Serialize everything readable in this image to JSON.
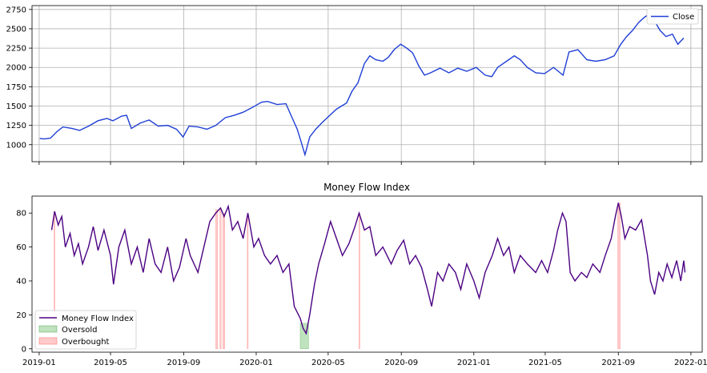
{
  "chart_data": [
    {
      "type": "line",
      "title": "",
      "xlabel": "",
      "ylabel": "",
      "x_ticks": [
        "2019-01",
        "2019-05",
        "2019-09",
        "2020-01",
        "2020-05",
        "2020-09",
        "2021-01",
        "2021-05",
        "2021-09",
        "2022-01"
      ],
      "xlim": [
        "2018-12-20",
        "2022-01-20"
      ],
      "ylim": [
        780,
        2800
      ],
      "y_ticks": [
        1000,
        1250,
        1500,
        1750,
        2000,
        2250,
        2500,
        2750
      ],
      "grid": true,
      "legend_position": "top-right",
      "series": [
        {
          "name": "Close",
          "color": "#1f3fd6",
          "points": [
            [
              "2019-01-02",
              1080
            ],
            [
              "2019-01-10",
              1075
            ],
            [
              "2019-01-20",
              1085
            ],
            [
              "2019-01-31",
              1170
            ],
            [
              "2019-02-10",
              1230
            ],
            [
              "2019-02-25",
              1210
            ],
            [
              "2019-03-10",
              1185
            ],
            [
              "2019-03-25",
              1240
            ],
            [
              "2019-04-10",
              1310
            ],
            [
              "2019-04-25",
              1340
            ],
            [
              "2019-05-05",
              1310
            ],
            [
              "2019-05-20",
              1370
            ],
            [
              "2019-05-28",
              1380
            ],
            [
              "2019-06-05",
              1210
            ],
            [
              "2019-06-20",
              1280
            ],
            [
              "2019-07-05",
              1320
            ],
            [
              "2019-07-20",
              1240
            ],
            [
              "2019-08-05",
              1250
            ],
            [
              "2019-08-20",
              1200
            ],
            [
              "2019-08-31",
              1100
            ],
            [
              "2019-09-10",
              1240
            ],
            [
              "2019-09-25",
              1230
            ],
            [
              "2019-10-10",
              1200
            ],
            [
              "2019-10-25",
              1250
            ],
            [
              "2019-11-10",
              1350
            ],
            [
              "2019-11-25",
              1380
            ],
            [
              "2019-12-10",
              1420
            ],
            [
              "2019-12-25",
              1480
            ],
            [
              "2020-01-10",
              1550
            ],
            [
              "2020-01-20",
              1560
            ],
            [
              "2020-02-05",
              1520
            ],
            [
              "2020-02-20",
              1530
            ],
            [
              "2020-02-28",
              1390
            ],
            [
              "2020-03-10",
              1200
            ],
            [
              "2020-03-16",
              1050
            ],
            [
              "2020-03-23",
              870
            ],
            [
              "2020-03-31",
              1100
            ],
            [
              "2020-04-10",
              1200
            ],
            [
              "2020-04-20",
              1280
            ],
            [
              "2020-05-01",
              1360
            ],
            [
              "2020-05-15",
              1460
            ],
            [
              "2020-06-01",
              1540
            ],
            [
              "2020-06-10",
              1690
            ],
            [
              "2020-06-20",
              1800
            ],
            [
              "2020-07-01",
              2050
            ],
            [
              "2020-07-10",
              2150
            ],
            [
              "2020-07-20",
              2100
            ],
            [
              "2020-08-01",
              2080
            ],
            [
              "2020-08-10",
              2130
            ],
            [
              "2020-08-20",
              2230
            ],
            [
              "2020-08-31",
              2300
            ],
            [
              "2020-09-10",
              2250
            ],
            [
              "2020-09-20",
              2190
            ],
            [
              "2020-10-01",
              2010
            ],
            [
              "2020-10-10",
              1900
            ],
            [
              "2020-10-20",
              1930
            ],
            [
              "2020-11-05",
              1990
            ],
            [
              "2020-11-20",
              1930
            ],
            [
              "2020-12-05",
              1990
            ],
            [
              "2020-12-20",
              1950
            ],
            [
              "2021-01-05",
              2000
            ],
            [
              "2021-01-20",
              1900
            ],
            [
              "2021-01-31",
              1880
            ],
            [
              "2021-02-10",
              2000
            ],
            [
              "2021-02-25",
              2080
            ],
            [
              "2021-03-10",
              2150
            ],
            [
              "2021-03-20",
              2100
            ],
            [
              "2021-04-01",
              2000
            ],
            [
              "2021-04-15",
              1930
            ],
            [
              "2021-04-30",
              1920
            ],
            [
              "2021-05-15",
              2000
            ],
            [
              "2021-05-31",
              1900
            ],
            [
              "2021-06-10",
              2200
            ],
            [
              "2021-06-25",
              2230
            ],
            [
              "2021-07-10",
              2100
            ],
            [
              "2021-07-25",
              2080
            ],
            [
              "2021-08-10",
              2100
            ],
            [
              "2021-08-25",
              2150
            ],
            [
              "2021-09-05",
              2300
            ],
            [
              "2021-09-15",
              2400
            ],
            [
              "2021-09-25",
              2480
            ],
            [
              "2021-10-05",
              2580
            ],
            [
              "2021-10-15",
              2650
            ],
            [
              "2021-10-25",
              2700
            ],
            [
              "2021-11-01",
              2600
            ],
            [
              "2021-11-10",
              2480
            ],
            [
              "2021-11-20",
              2400
            ],
            [
              "2021-12-01",
              2430
            ],
            [
              "2021-12-10",
              2300
            ],
            [
              "2021-12-20",
              2380
            ]
          ]
        }
      ]
    },
    {
      "type": "line",
      "title": "Money Flow Index",
      "xlabel": "",
      "ylabel": "",
      "x_ticks": [
        "2019-01",
        "2019-05",
        "2019-09",
        "2020-01",
        "2020-05",
        "2020-09",
        "2021-01",
        "2021-05",
        "2021-09",
        "2022-01"
      ],
      "xlim": [
        "2018-12-20",
        "2022-01-20"
      ],
      "ylim": [
        -2,
        90
      ],
      "y_ticks": [
        0,
        20,
        40,
        60,
        80
      ],
      "grid": false,
      "legend_position": "lower-left",
      "series": [
        {
          "name": "Money Flow Index",
          "color": "#4b0082",
          "points": [
            [
              "2019-01-22",
              70
            ],
            [
              "2019-01-27",
              81
            ],
            [
              "2019-02-02",
              73
            ],
            [
              "2019-02-08",
              78
            ],
            [
              "2019-02-14",
              60
            ],
            [
              "2019-02-22",
              68
            ],
            [
              "2019-03-01",
              55
            ],
            [
              "2019-03-08",
              62
            ],
            [
              "2019-03-15",
              50
            ],
            [
              "2019-03-25",
              60
            ],
            [
              "2019-04-02",
              72
            ],
            [
              "2019-04-10",
              58
            ],
            [
              "2019-04-20",
              70
            ],
            [
              "2019-05-01",
              55
            ],
            [
              "2019-05-06",
              38
            ],
            [
              "2019-05-15",
              60
            ],
            [
              "2019-05-25",
              70
            ],
            [
              "2019-06-05",
              50
            ],
            [
              "2019-06-15",
              60
            ],
            [
              "2019-06-25",
              45
            ],
            [
              "2019-07-05",
              65
            ],
            [
              "2019-07-15",
              50
            ],
            [
              "2019-07-25",
              45
            ],
            [
              "2019-08-05",
              60
            ],
            [
              "2019-08-15",
              40
            ],
            [
              "2019-08-25",
              48
            ],
            [
              "2019-09-05",
              65
            ],
            [
              "2019-09-12",
              55
            ],
            [
              "2019-09-25",
              45
            ],
            [
              "2019-10-05",
              60
            ],
            [
              "2019-10-15",
              75
            ],
            [
              "2019-10-25",
              80
            ],
            [
              "2019-11-02",
              83
            ],
            [
              "2019-11-08",
              78
            ],
            [
              "2019-11-15",
              84
            ],
            [
              "2019-11-22",
              70
            ],
            [
              "2019-12-01",
              75
            ],
            [
              "2019-12-10",
              65
            ],
            [
              "2019-12-18",
              80
            ],
            [
              "2019-12-28",
              60
            ],
            [
              "2020-01-05",
              65
            ],
            [
              "2020-01-15",
              55
            ],
            [
              "2020-01-25",
              50
            ],
            [
              "2020-02-05",
              55
            ],
            [
              "2020-02-15",
              45
            ],
            [
              "2020-02-25",
              50
            ],
            [
              "2020-03-05",
              25
            ],
            [
              "2020-03-15",
              18
            ],
            [
              "2020-03-20",
              12
            ],
            [
              "2020-03-25",
              9
            ],
            [
              "2020-03-31",
              20
            ],
            [
              "2020-04-08",
              38
            ],
            [
              "2020-04-15",
              50
            ],
            [
              "2020-04-25",
              62
            ],
            [
              "2020-05-05",
              75
            ],
            [
              "2020-05-15",
              65
            ],
            [
              "2020-05-25",
              55
            ],
            [
              "2020-06-05",
              62
            ],
            [
              "2020-06-15",
              72
            ],
            [
              "2020-06-22",
              80
            ],
            [
              "2020-07-01",
              70
            ],
            [
              "2020-07-10",
              72
            ],
            [
              "2020-07-20",
              55
            ],
            [
              "2020-08-01",
              60
            ],
            [
              "2020-08-15",
              50
            ],
            [
              "2020-08-25",
              58
            ],
            [
              "2020-09-05",
              64
            ],
            [
              "2020-09-15",
              50
            ],
            [
              "2020-09-25",
              55
            ],
            [
              "2020-10-05",
              48
            ],
            [
              "2020-10-15",
              35
            ],
            [
              "2020-10-22",
              25
            ],
            [
              "2020-11-01",
              45
            ],
            [
              "2020-11-10",
              40
            ],
            [
              "2020-11-20",
              50
            ],
            [
              "2020-12-01",
              45
            ],
            [
              "2020-12-10",
              35
            ],
            [
              "2020-12-20",
              50
            ],
            [
              "2021-01-01",
              40
            ],
            [
              "2021-01-10",
              30
            ],
            [
              "2021-01-20",
              45
            ],
            [
              "2021-02-01",
              55
            ],
            [
              "2021-02-10",
              65
            ],
            [
              "2021-02-20",
              55
            ],
            [
              "2021-03-01",
              60
            ],
            [
              "2021-03-10",
              45
            ],
            [
              "2021-03-20",
              55
            ],
            [
              "2021-04-01",
              50
            ],
            [
              "2021-04-15",
              45
            ],
            [
              "2021-04-25",
              52
            ],
            [
              "2021-05-05",
              45
            ],
            [
              "2021-05-15",
              58
            ],
            [
              "2021-05-22",
              70
            ],
            [
              "2021-05-30",
              80
            ],
            [
              "2021-06-05",
              75
            ],
            [
              "2021-06-12",
              45
            ],
            [
              "2021-06-20",
              40
            ],
            [
              "2021-07-01",
              45
            ],
            [
              "2021-07-10",
              42
            ],
            [
              "2021-07-20",
              50
            ],
            [
              "2021-08-01",
              45
            ],
            [
              "2021-08-10",
              55
            ],
            [
              "2021-08-20",
              65
            ],
            [
              "2021-08-27",
              78
            ],
            [
              "2021-09-01",
              86
            ],
            [
              "2021-09-06",
              78
            ],
            [
              "2021-09-12",
              65
            ],
            [
              "2021-09-20",
              72
            ],
            [
              "2021-09-30",
              70
            ],
            [
              "2021-10-10",
              76
            ],
            [
              "2021-10-20",
              55
            ],
            [
              "2021-10-25",
              40
            ],
            [
              "2021-11-01",
              32
            ],
            [
              "2021-11-08",
              45
            ],
            [
              "2021-11-15",
              40
            ],
            [
              "2021-11-22",
              50
            ],
            [
              "2021-11-30",
              42
            ],
            [
              "2021-12-08",
              52
            ],
            [
              "2021-12-15",
              40
            ],
            [
              "2021-12-20",
              52
            ],
            [
              "2021-12-22",
              45
            ]
          ]
        }
      ],
      "regions": [
        {
          "name": "Oversold",
          "color": "#2ca02c",
          "spans": [
            [
              "2020-03-15",
              "2020-03-29",
              15
            ]
          ]
        },
        {
          "name": "Overbought",
          "color": "#ff6666",
          "spans": [
            [
              "2019-01-26",
              "2019-01-27",
              81
            ],
            [
              "2019-10-25",
              "2019-10-28",
              82
            ],
            [
              "2019-11-01",
              "2019-11-03",
              83
            ],
            [
              "2019-11-06",
              "2019-11-09",
              80
            ],
            [
              "2019-12-17",
              "2019-12-18",
              80
            ],
            [
              "2020-06-22",
              "2020-06-23",
              80
            ],
            [
              "2021-08-31",
              "2021-09-04",
              86
            ]
          ]
        }
      ]
    }
  ]
}
